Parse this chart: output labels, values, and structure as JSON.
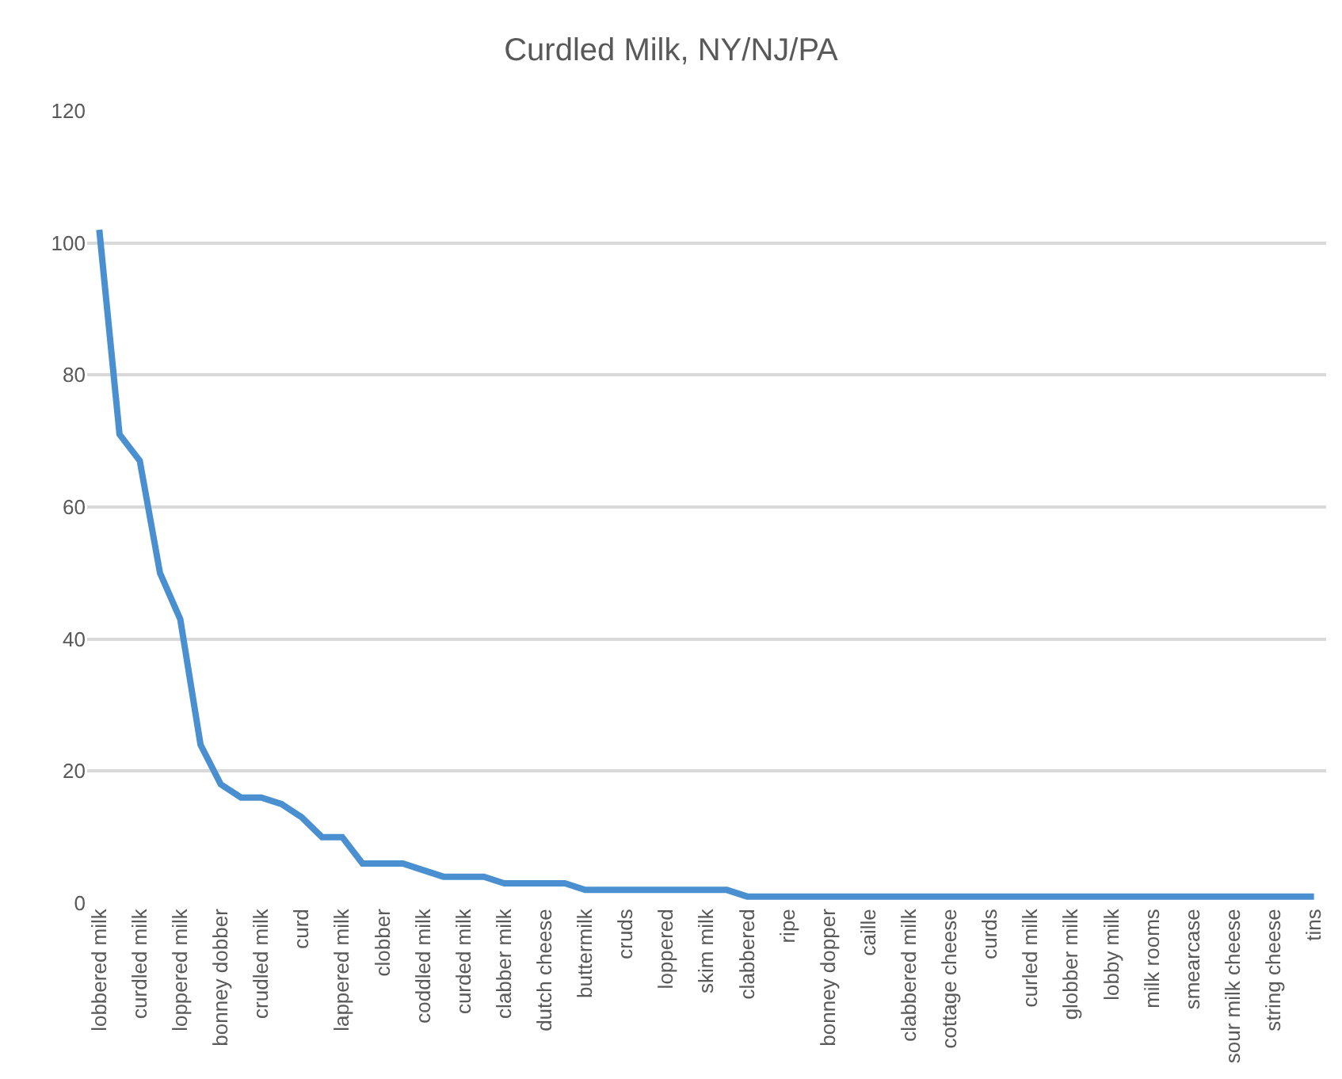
{
  "chart_data": {
    "type": "line",
    "title": "Curdled Milk, NY/NJ/PA",
    "categories": [
      "lobbered milk",
      null,
      "curdled milk",
      null,
      "loppered milk",
      null,
      "bonney dobber",
      null,
      "crudled milk",
      null,
      "curd",
      null,
      "lappered milk",
      null,
      "clobber",
      null,
      "coddled milk",
      null,
      "curded milk",
      null,
      "clabber milk",
      null,
      "dutch cheese",
      null,
      "buttermilk",
      null,
      "cruds",
      null,
      "loppered",
      null,
      "skim milk",
      null,
      "clabbered",
      null,
      "ripe",
      null,
      "bonney dopper",
      null,
      "caille",
      null,
      "clabbered milk",
      null,
      "cottage cheese",
      null,
      "curds",
      null,
      "curled milk",
      null,
      "globber milk",
      null,
      "lobby milk",
      null,
      "milk rooms",
      null,
      "smearcase",
      null,
      "sour milk cheese",
      null,
      "string cheese",
      null,
      "tins"
    ],
    "series": [
      {
        "color": "#4a90d0",
        "values": [
          102,
          71,
          67,
          50,
          43,
          24,
          18,
          16,
          16,
          15,
          13,
          10,
          10,
          6,
          6,
          6,
          5,
          4,
          4,
          4,
          3,
          3,
          3,
          3,
          2,
          2,
          2,
          2,
          2,
          2,
          2,
          2,
          1,
          1,
          1,
          1,
          1,
          1,
          1,
          1,
          1,
          1,
          1,
          1,
          1,
          1,
          1,
          1,
          1,
          1,
          1,
          1,
          1,
          1,
          1,
          1,
          1,
          1,
          1,
          1,
          1
        ]
      }
    ],
    "ylim": [
      0,
      120
    ],
    "yticks": [
      0,
      20,
      40,
      60,
      80,
      100,
      120
    ],
    "grid": "y",
    "marker": "none",
    "line_style": "solid"
  }
}
